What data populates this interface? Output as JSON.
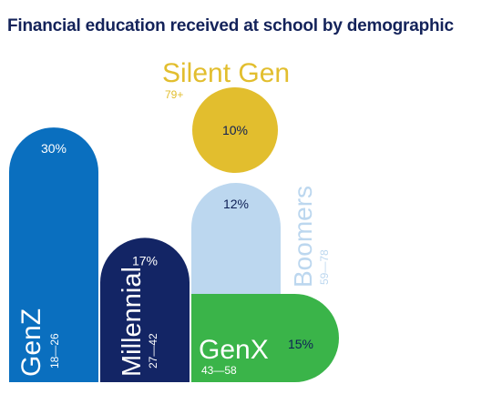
{
  "title": "Financial education received at school by demographic",
  "chart_data": {
    "type": "bar",
    "title": "Financial education received at school by demographic",
    "value_unit": "%",
    "categories": [
      "GenZ",
      "Millennial",
      "GenX",
      "Boomers",
      "Silent Gen"
    ],
    "age_ranges": [
      "18—26",
      "27—42",
      "43—58",
      "59—78",
      "79+"
    ],
    "values": [
      30,
      17,
      15,
      12,
      10
    ],
    "value_labels": [
      "30%",
      "17%",
      "15%",
      "12%",
      "10%"
    ],
    "colors": [
      "#0a6fbf",
      "#132565",
      "#3ab449",
      "#bcd7ef",
      "#e2be2e"
    ],
    "text_colors": [
      "#ffffff",
      "#ffffff",
      "#ffffff",
      "#0d1f55",
      "#0d1f55"
    ],
    "label_colors": [
      "#ffffff",
      "#ffffff",
      "#ffffff",
      "#bcd7ef",
      "#e2be2e"
    ]
  }
}
